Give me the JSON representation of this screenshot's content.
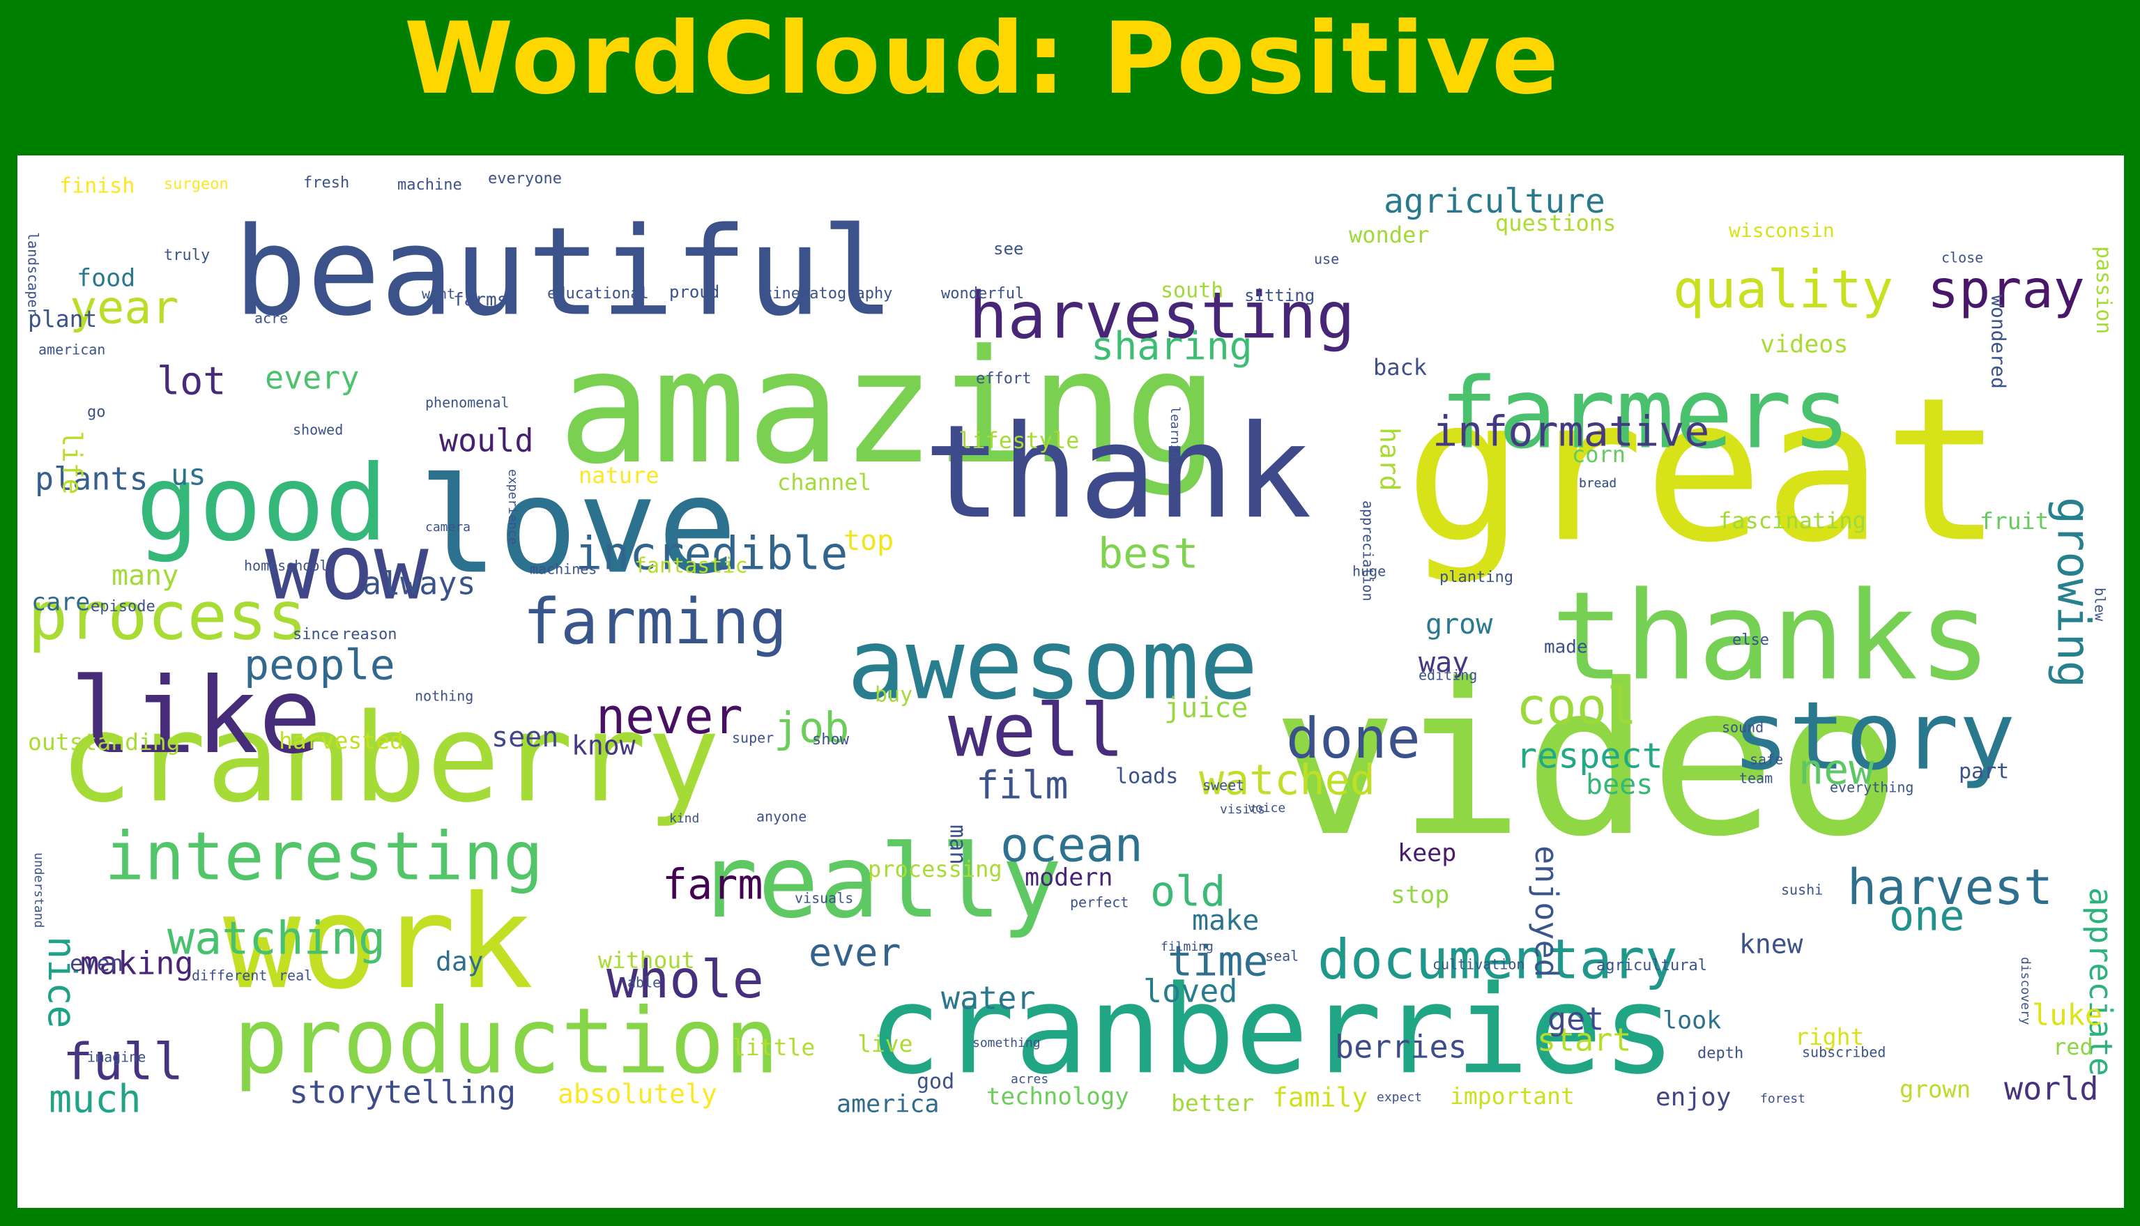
{
  "title": "WordCloud: Positive",
  "words": [
    {
      "text": "video",
      "color": "#8fd744"
    },
    {
      "text": "great",
      "color": "#d8e219"
    },
    {
      "text": "amazing",
      "color": "#7ad151"
    },
    {
      "text": "beautiful",
      "color": "#3b528b"
    },
    {
      "text": "love",
      "color": "#2c728e"
    },
    {
      "text": "thank",
      "color": "#3e4a89"
    },
    {
      "text": "cranberry",
      "color": "#a5db36"
    },
    {
      "text": "cranberries",
      "color": "#21a685"
    },
    {
      "text": "work",
      "color": "#c2df23"
    },
    {
      "text": "thanks",
      "color": "#75d054"
    },
    {
      "text": "awesome",
      "color": "#287d8e"
    },
    {
      "text": "really",
      "color": "#5ec962"
    },
    {
      "text": "like",
      "color": "#472c7a"
    },
    {
      "text": "good",
      "color": "#35b779"
    },
    {
      "text": "farmers",
      "color": "#4ac16d"
    },
    {
      "text": "story",
      "color": "#2a788e"
    },
    {
      "text": "production",
      "color": "#86d549"
    },
    {
      "text": "wow",
      "color": "#3f4788"
    },
    {
      "text": "interesting",
      "color": "#52c569"
    },
    {
      "text": "process",
      "color": "#a8db34"
    },
    {
      "text": "harvesting",
      "color": "#482677"
    },
    {
      "text": "documentary",
      "color": "#1f988b"
    },
    {
      "text": "well",
      "color": "#472d7b"
    },
    {
      "text": "farming",
      "color": "#39568c"
    },
    {
      "text": "whole",
      "color": "#46307e"
    },
    {
      "text": "harvest",
      "color": "#2d708e"
    },
    {
      "text": "quality",
      "color": "#c8e020"
    },
    {
      "text": "incredible",
      "color": "#32658e"
    },
    {
      "text": "spray",
      "color": "#481769"
    },
    {
      "text": "done",
      "color": "#3b518b"
    },
    {
      "text": "ocean",
      "color": "#2c718e"
    },
    {
      "text": "cool",
      "color": "#9bd93c"
    },
    {
      "text": "watching",
      "color": "#48c16e"
    },
    {
      "text": "informative",
      "color": "#443a83"
    },
    {
      "text": "growing",
      "color": "#27808e"
    },
    {
      "text": "full",
      "color": "#463480"
    },
    {
      "text": "never",
      "color": "#471063"
    },
    {
      "text": "people",
      "color": "#31688e"
    },
    {
      "text": "watched",
      "color": "#bddf26"
    },
    {
      "text": "year",
      "color": "#bade28"
    },
    {
      "text": "farm",
      "color": "#440154"
    },
    {
      "text": "job",
      "color": "#6ccd5a"
    },
    {
      "text": "best",
      "color": "#7fd34e"
    },
    {
      "text": "sharing",
      "color": "#3dbc74"
    },
    {
      "text": "time",
      "color": "#2e6e8e"
    },
    {
      "text": "nice",
      "color": "#1fa187"
    },
    {
      "text": "old",
      "color": "#3aba76"
    },
    {
      "text": "new",
      "color": "#5cc863"
    },
    {
      "text": "one",
      "color": "#21918c"
    },
    {
      "text": "respect",
      "color": "#22a884"
    },
    {
      "text": "appreciate",
      "color": "#2db27d"
    },
    {
      "text": "storytelling",
      "color": "#3e4c8a"
    },
    {
      "text": "film",
      "color": "#3b528b"
    },
    {
      "text": "ever",
      "color": "#33638d"
    },
    {
      "text": "making",
      "color": "#482475"
    },
    {
      "text": "lot",
      "color": "#472a7a"
    },
    {
      "text": "enjoyed",
      "color": "#39568c"
    },
    {
      "text": "always",
      "color": "#3a538b"
    },
    {
      "text": "berries",
      "color": "#3d4d8a"
    },
    {
      "text": "loved",
      "color": "#287c8e"
    },
    {
      "text": "much",
      "color": "#20a386"
    },
    {
      "text": "world",
      "color": "#46327e"
    },
    {
      "text": "plants",
      "color": "#35608d"
    },
    {
      "text": "every",
      "color": "#4cc26c"
    },
    {
      "text": "would",
      "color": "#481f70"
    },
    {
      "text": "water",
      "color": "#2a768e"
    },
    {
      "text": "seen",
      "color": "#404688"
    },
    {
      "text": "know",
      "color": "#443983"
    },
    {
      "text": "make",
      "color": "#2c738e"
    },
    {
      "text": "start",
      "color": "#b5de2b"
    },
    {
      "text": "absolutely",
      "color": "#fde725"
    },
    {
      "text": "many",
      "color": "#a2da37"
    },
    {
      "text": "hard",
      "color": "#a8db34"
    },
    {
      "text": "grow",
      "color": "#297a8e"
    },
    {
      "text": "top",
      "color": "#f1e51d"
    },
    {
      "text": "knew",
      "color": "#3b528b"
    },
    {
      "text": "day",
      "color": "#2e6f8e"
    },
    {
      "text": "even",
      "color": "#414487"
    },
    {
      "text": "get",
      "color": "#3e4989"
    },
    {
      "text": "look",
      "color": "#2d708e"
    },
    {
      "text": "luke",
      "color": "#dde318"
    },
    {
      "text": "enjoy",
      "color": "#3f4788"
    },
    {
      "text": "family",
      "color": "#d0e11c"
    },
    {
      "text": "important",
      "color": "#cae11f"
    },
    {
      "text": "better",
      "color": "#9fda3a"
    },
    {
      "text": "america",
      "color": "#2f6c8e"
    },
    {
      "text": "technology",
      "color": "#6ccd5a"
    },
    {
      "text": "grown",
      "color": "#bade28"
    },
    {
      "text": "way",
      "color": "#453781"
    },
    {
      "text": "us",
      "color": "#2c728e"
    },
    {
      "text": "life",
      "color": "#b8de29"
    },
    {
      "text": "care",
      "color": "#31688e"
    },
    {
      "text": "modern",
      "color": "#482576"
    },
    {
      "text": "keep",
      "color": "#481b6d"
    },
    {
      "text": "stop",
      "color": "#93d741"
    },
    {
      "text": "red",
      "color": "#8bd646"
    },
    {
      "text": "fruit",
      "color": "#65cb5e"
    },
    {
      "text": "corn",
      "color": "#63cb5f"
    },
    {
      "text": "back",
      "color": "#3d4e8a"
    },
    {
      "text": "food",
      "color": "#2a788e"
    },
    {
      "text": "plant",
      "color": "#3b528b"
    },
    {
      "text": "videos",
      "color": "#a8db34"
    },
    {
      "text": "south",
      "color": "#a0da39"
    },
    {
      "text": "lifestyle",
      "color": "#a5db36"
    },
    {
      "text": "nature",
      "color": "#fde725"
    },
    {
      "text": "channel",
      "color": "#a5db36"
    },
    {
      "text": "fantastic",
      "color": "#b5de2b"
    },
    {
      "text": "fascinating",
      "color": "#a0da39"
    },
    {
      "text": "processing",
      "color": "#a8db34"
    },
    {
      "text": "juice",
      "color": "#95d840"
    },
    {
      "text": "loads",
      "color": "#3b528b"
    },
    {
      "text": "buy",
      "color": "#a2da37"
    },
    {
      "text": "harvested",
      "color": "#c2df23"
    },
    {
      "text": "outstanding",
      "color": "#a8db34"
    },
    {
      "text": "bees",
      "color": "#35b779"
    },
    {
      "text": "live",
      "color": "#addc30"
    },
    {
      "text": "little",
      "color": "#b0dd2f"
    },
    {
      "text": "right",
      "color": "#d8e219"
    },
    {
      "text": "without",
      "color": "#a8db34"
    },
    {
      "text": "agriculture",
      "color": "#2a788e"
    },
    {
      "text": "questions",
      "color": "#addc30"
    },
    {
      "text": "finish",
      "color": "#fde725"
    },
    {
      "text": "wonder",
      "color": "#a0da39"
    },
    {
      "text": "passion",
      "color": "#a5db36"
    },
    {
      "text": "wisconsin",
      "color": "#d8e219"
    },
    {
      "text": "fresh",
      "color": "#3b528b"
    },
    {
      "text": "machine",
      "color": "#3b528b"
    },
    {
      "text": "everyone",
      "color": "#3b528b"
    },
    {
      "text": "surgeon",
      "color": "#fde725"
    },
    {
      "text": "proud",
      "color": "#3b528b"
    },
    {
      "text": "cinematography",
      "color": "#3b528b"
    },
    {
      "text": "wonderful",
      "color": "#3b528b"
    },
    {
      "text": "educational",
      "color": "#3b528b"
    },
    {
      "text": "farms",
      "color": "#3b528b"
    },
    {
      "text": "sitting",
      "color": "#3b528b"
    },
    {
      "text": "see",
      "color": "#3b528b"
    },
    {
      "text": "truly",
      "color": "#3b528b"
    },
    {
      "text": "went",
      "color": "#3b528b"
    },
    {
      "text": "acre",
      "color": "#3b528b"
    },
    {
      "text": "american",
      "color": "#3b528b"
    },
    {
      "text": "phenomenal",
      "color": "#3b528b"
    },
    {
      "text": "effort",
      "color": "#3b528b"
    },
    {
      "text": "learning",
      "color": "#3b528b"
    },
    {
      "text": "camera",
      "color": "#3b528b"
    },
    {
      "text": "homeschool",
      "color": "#3b528b"
    },
    {
      "text": "machines",
      "color": "#3b528b"
    },
    {
      "text": "planting",
      "color": "#3b528b"
    },
    {
      "text": "huge",
      "color": "#3b528b"
    },
    {
      "text": "episode",
      "color": "#3b528b"
    },
    {
      "text": "since",
      "color": "#3b528b"
    },
    {
      "text": "reason",
      "color": "#3b528b"
    },
    {
      "text": "made",
      "color": "#3b528b"
    },
    {
      "text": "else",
      "color": "#3b528b"
    },
    {
      "text": "editing",
      "color": "#3b528b"
    },
    {
      "text": "nothing",
      "color": "#3b528b"
    },
    {
      "text": "sound",
      "color": "#3b528b"
    },
    {
      "text": "super",
      "color": "#3b528b"
    },
    {
      "text": "show",
      "color": "#3b528b"
    },
    {
      "text": "sweet",
      "color": "#3b528b"
    },
    {
      "text": "visits",
      "color": "#3b528b"
    },
    {
      "text": "anyone",
      "color": "#3b528b"
    },
    {
      "text": "kind",
      "color": "#3b528b"
    },
    {
      "text": "visuals",
      "color": "#3b528b"
    },
    {
      "text": "perfect",
      "color": "#3b528b"
    },
    {
      "text": "filming",
      "color": "#3b528b"
    },
    {
      "text": "seal",
      "color": "#3b528b"
    },
    {
      "text": "cultivation",
      "color": "#3b528b"
    },
    {
      "text": "agricultural",
      "color": "#3b528b"
    },
    {
      "text": "different",
      "color": "#3b528b"
    },
    {
      "text": "real",
      "color": "#3b528b"
    },
    {
      "text": "able",
      "color": "#3b528b"
    },
    {
      "text": "imagine",
      "color": "#3b528b"
    },
    {
      "text": "something",
      "color": "#3b528b"
    },
    {
      "text": "depth",
      "color": "#3b528b"
    },
    {
      "text": "subscribed",
      "color": "#3b528b"
    },
    {
      "text": "god",
      "color": "#3b528b"
    },
    {
      "text": "acres",
      "color": "#3b528b"
    },
    {
      "text": "expect",
      "color": "#3b528b"
    },
    {
      "text": "forest",
      "color": "#3b528b"
    },
    {
      "text": "understand",
      "color": "#3b528b"
    },
    {
      "text": "discovery",
      "color": "#3b528b"
    },
    {
      "text": "bread",
      "color": "#3b528b"
    },
    {
      "text": "close",
      "color": "#3b528b"
    },
    {
      "text": "wondered",
      "color": "#3b528b"
    },
    {
      "text": "appreciation",
      "color": "#3b528b"
    },
    {
      "text": "experience",
      "color": "#3b528b"
    },
    {
      "text": "showed",
      "color": "#3b528b"
    },
    {
      "text": "go",
      "color": "#3b528b"
    },
    {
      "text": "man",
      "color": "#3b528b"
    },
    {
      "text": "landscaper",
      "color": "#3b528b"
    },
    {
      "text": "everything",
      "color": "#3b528b"
    },
    {
      "text": "safe",
      "color": "#3b528b"
    },
    {
      "text": "team",
      "color": "#3b528b"
    },
    {
      "text": "part",
      "color": "#3b528b"
    },
    {
      "text": "sushi",
      "color": "#3b528b"
    },
    {
      "text": "voice",
      "color": "#3b528b"
    },
    {
      "text": "use",
      "color": "#3b528b"
    },
    {
      "text": "blew",
      "color": "#3b528b"
    },
    {
      "text": "bread",
      "color": "#3b528b"
    }
  ]
}
